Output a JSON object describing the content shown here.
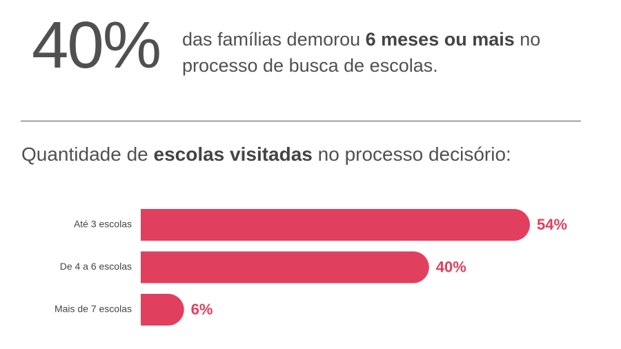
{
  "headline": {
    "stat": "40%",
    "text_parts": [
      "das famílias demorou ",
      "6 meses ou mais",
      " no processo de busca de escolas."
    ]
  },
  "chart_data": {
    "type": "bar",
    "orientation": "horizontal",
    "title_parts": [
      "Quantidade de ",
      "escolas visitadas",
      " no processo decisório:"
    ],
    "categories": [
      "Até 3 escolas",
      "De 4 a 6 escolas",
      "Mais de 7 escolas"
    ],
    "values": [
      54,
      40,
      6
    ],
    "value_labels": [
      "54%",
      "40%",
      "6%"
    ],
    "color": "#e0405e"
  }
}
